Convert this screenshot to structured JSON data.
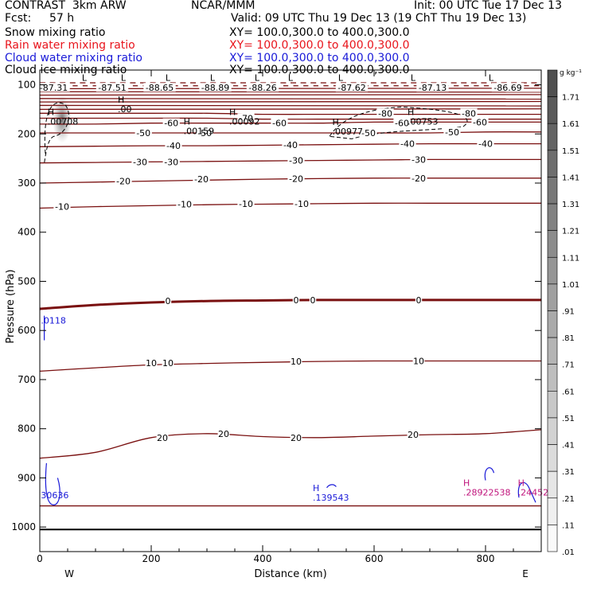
{
  "header": {
    "model": "CONTRAST  3km ARW",
    "center": "NCAR/MMM",
    "init": "Init: 00 UTC Tue 17 Dec 13",
    "fcst_label": "Fcst:",
    "fcst_value": "57 h",
    "valid": "Valid: 09 UTC Thu 19 Dec 13 (19 ChT Thu 19 Dec 13)"
  },
  "fields": [
    {
      "name": "Snow mixing ratio",
      "xy": "XY= 100.0,300.0 to 400.0,300.0",
      "color": "#000000"
    },
    {
      "name": "Rain water mixing ratio",
      "xy": "XY= 100.0,300.0 to 400.0,300.0",
      "color": "#e8141c"
    },
    {
      "name": "Cloud water mixing ratio",
      "xy": "XY= 100.0,300.0 to 400.0,300.0",
      "color": "#1a1ad8"
    },
    {
      "name": "Cloud ice mixing ratio",
      "xy": "XY= 100.0,300.0 to 400.0,300.0",
      "color": "#000000"
    }
  ],
  "colors": {
    "temperature": "#7a1010",
    "freezing": "#7a1010",
    "cloud_water": "#1a1ad8",
    "rain_water": "#c0147c",
    "cloud_ice": "#000000"
  },
  "chart_data": {
    "type": "contour",
    "xlabel": "Distance (km)",
    "ylabel": "Pressure (hPa)",
    "xlim": [
      0,
      900
    ],
    "ylim": [
      1050,
      70
    ],
    "xticks": [
      0,
      200,
      400,
      600,
      800
    ],
    "yticks": [
      100,
      200,
      300,
      400,
      500,
      600,
      700,
      800,
      900,
      1000
    ],
    "x_end_labels": [
      "W",
      "E"
    ],
    "colorbar": {
      "unit": "g kg⁻¹",
      "levels": [
        "1.71",
        "1.61",
        "1.51",
        "1.41",
        "1.31",
        "1.21",
        "1.11",
        "1.01",
        ".91",
        ".81",
        ".71",
        ".61",
        ".51",
        ".41",
        ".31",
        ".21",
        ".11",
        ".01"
      ]
    },
    "temperature_contours": [
      {
        "value": -80,
        "p": [
          158,
          158,
          158,
          158,
          160,
          160,
          160,
          160,
          160,
          160
        ]
      },
      {
        "value": -70,
        "p": [
          168,
          168,
          168,
          168,
          170,
          170,
          170,
          170,
          170,
          170
        ]
      },
      {
        "value": -60,
        "p": [
          180,
          180,
          178,
          178,
          178,
          178,
          176,
          176,
          176,
          176
        ]
      },
      {
        "value": -50,
        "p": [
          198,
          198,
          198,
          198,
          198,
          198,
          198,
          198,
          196,
          196
        ]
      },
      {
        "value": -40,
        "p": [
          226,
          225,
          224,
          224,
          223,
          222,
          221,
          220,
          220,
          220
        ]
      },
      {
        "value": -30,
        "p": [
          259,
          258,
          257,
          256,
          255,
          254,
          253,
          252,
          252,
          252
        ]
      },
      {
        "value": -20,
        "p": [
          300,
          298,
          296,
          294,
          292,
          291,
          290,
          290,
          290,
          290
        ]
      },
      {
        "value": -10,
        "p": [
          351,
          348,
          346,
          344,
          343,
          342,
          341,
          341,
          341,
          341
        ]
      },
      {
        "value": 0,
        "p": [
          556,
          548,
          543,
          540,
          539,
          538,
          538,
          538,
          538,
          538
        ]
      },
      {
        "value": 10,
        "p": [
          683,
          676,
          670,
          667,
          665,
          663,
          662,
          662,
          662,
          662
        ]
      },
      {
        "value": 20,
        "p": [
          860,
          848,
          818,
          810,
          816,
          818,
          815,
          812,
          810,
          802
        ]
      }
    ],
    "temperature_labels": [
      {
        "text": "-80",
        "x": 620,
        "p": 158
      },
      {
        "text": "-80",
        "x": 770,
        "p": 158
      },
      {
        "text": "-70",
        "x": 370,
        "p": 168
      },
      {
        "text": "-60",
        "x": 236,
        "p": 178
      },
      {
        "text": "-60",
        "x": 430,
        "p": 178
      },
      {
        "text": "-60",
        "x": 650,
        "p": 178
      },
      {
        "text": "-60",
        "x": 790,
        "p": 176
      },
      {
        "text": "-50",
        "x": 186,
        "p": 198
      },
      {
        "text": "-50",
        "x": 296,
        "p": 198
      },
      {
        "text": "-50",
        "x": 590,
        "p": 198
      },
      {
        "text": "-50",
        "x": 740,
        "p": 196
      },
      {
        "text": "-40",
        "x": 240,
        "p": 224
      },
      {
        "text": "-40",
        "x": 450,
        "p": 222
      },
      {
        "text": "-40",
        "x": 660,
        "p": 220
      },
      {
        "text": "-40",
        "x": 800,
        "p": 220
      },
      {
        "text": "-30",
        "x": 180,
        "p": 257
      },
      {
        "text": "-30",
        "x": 236,
        "p": 257
      },
      {
        "text": "-30",
        "x": 460,
        "p": 254
      },
      {
        "text": "-30",
        "x": 680,
        "p": 252
      },
      {
        "text": "-20",
        "x": 150,
        "p": 296
      },
      {
        "text": "-20",
        "x": 290,
        "p": 292
      },
      {
        "text": "-20",
        "x": 460,
        "p": 291
      },
      {
        "text": "-20",
        "x": 680,
        "p": 290
      },
      {
        "text": "-10",
        "x": 40,
        "p": 348
      },
      {
        "text": "-10",
        "x": 260,
        "p": 343
      },
      {
        "text": "-10",
        "x": 370,
        "p": 342
      },
      {
        "text": "-10",
        "x": 470,
        "p": 342
      },
      {
        "text": "0",
        "x": 230,
        "p": 540
      },
      {
        "text": "0",
        "x": 460,
        "p": 538
      },
      {
        "text": "0",
        "x": 490,
        "p": 538
      },
      {
        "text": "0",
        "x": 680,
        "p": 538
      },
      {
        "text": "10",
        "x": 200,
        "p": 666
      },
      {
        "text": "10",
        "x": 230,
        "p": 666
      },
      {
        "text": "10",
        "x": 460,
        "p": 663
      },
      {
        "text": "10",
        "x": 680,
        "p": 662
      },
      {
        "text": "20",
        "x": 220,
        "p": 818
      },
      {
        "text": "20",
        "x": 330,
        "p": 810
      },
      {
        "text": "20",
        "x": 460,
        "p": 818
      },
      {
        "text": "20",
        "x": 670,
        "p": 812
      }
    ],
    "top_min_labels": [
      {
        "text": "L",
        "x": 80
      },
      {
        "text": "L",
        "x": 150
      },
      {
        "text": "L",
        "x": 230
      },
      {
        "text": "L",
        "x": 310
      },
      {
        "text": "L",
        "x": 390
      },
      {
        "text": "L",
        "x": 450
      },
      {
        "text": "L",
        "x": 540
      },
      {
        "text": "L",
        "x": 670
      },
      {
        "text": "L",
        "x": 810
      }
    ],
    "top_values": [
      {
        "text": "-87.31",
        "x": 25
      },
      {
        "text": "-87.51",
        "x": 130
      },
      {
        "text": "-88.65",
        "x": 215
      },
      {
        "text": "-88.89",
        "x": 315
      },
      {
        "text": "-88.26",
        "x": 400
      },
      {
        "text": "-87.62",
        "x": 560
      },
      {
        "text": "-87.13",
        "x": 705
      },
      {
        "text": "-86.69",
        "x": 840
      }
    ],
    "ice_maxima": [
      {
        "mark": "H",
        "value": ".00",
        "x": 140,
        "p": 140
      },
      {
        "mark": "H",
        "value": ".00708",
        "x": 14,
        "p": 165
      },
      {
        "mark": "H",
        "value": ".00159",
        "x": 258,
        "p": 184
      },
      {
        "mark": "H",
        "value": ".00092",
        "x": 340,
        "p": 165
      },
      {
        "mark": "H",
        "value": ".00977",
        "x": 525,
        "p": 185
      },
      {
        "mark": "H",
        "value": ".00753",
        "x": 660,
        "p": 165
      }
    ],
    "water_maxima": [
      {
        "mark": "",
        "value": ".0118",
        "x": 2,
        "p": 570,
        "kind": "cloud_water"
      },
      {
        "mark": "",
        "value": "30636",
        "x": 2,
        "p": 925,
        "kind": "cloud_water"
      },
      {
        "mark": "H",
        "value": ".139543",
        "x": 490,
        "p": 930,
        "kind": "cloud_water"
      },
      {
        "mark": "H",
        "value": ".28922538",
        "x": 760,
        "p": 920,
        "kind": "rain_water"
      },
      {
        "mark": "H",
        "value": ".24452",
        "x": 858,
        "p": 920,
        "kind": "rain_water"
      }
    ]
  }
}
